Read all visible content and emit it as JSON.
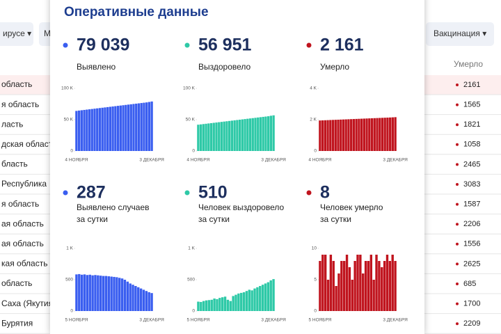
{
  "toolbar": [
    "ирусе ▾",
    "М",
    "Вакцинация ▾"
  ],
  "table": {
    "header": "Умерло",
    "rows": [
      [
        "область",
        "2161"
      ],
      [
        "я область",
        "1565"
      ],
      [
        "ласть",
        "1821"
      ],
      [
        "дская област",
        "1058"
      ],
      [
        "бласть",
        "2465"
      ],
      [
        "Республика",
        "3083"
      ],
      [
        "я область",
        "1587"
      ],
      [
        "ая область",
        "2206"
      ],
      [
        "ая область",
        "1556"
      ],
      [
        "кая область",
        "2625"
      ],
      [
        "область",
        "685"
      ],
      [
        "Саха (Якутия",
        "1700"
      ],
      [
        "Бурятия",
        "2209"
      ]
    ]
  },
  "popup": {
    "title": "Оперативные данные",
    "cards": [
      {
        "value": "79 039",
        "label": [
          "Выявлено"
        ],
        "chart_data": {
          "type": "bar",
          "color": "#3a5ef0",
          "categories": [
            "4 НОЯБРЯ",
            null,
            null,
            null,
            null,
            null,
            null,
            null,
            null,
            null,
            null,
            null,
            null,
            null,
            null,
            null,
            null,
            null,
            null,
            null,
            null,
            null,
            null,
            null,
            null,
            null,
            null,
            null,
            null,
            "3 ДЕКАБРЯ"
          ],
          "values": [
            64000,
            64600,
            65100,
            65600,
            66100,
            66600,
            67100,
            67600,
            68100,
            68600,
            69100,
            69600,
            70100,
            70600,
            71100,
            71600,
            72100,
            72600,
            73100,
            73600,
            74100,
            74600,
            75100,
            75600,
            76100,
            76600,
            77100,
            77600,
            78300,
            79039
          ],
          "ylim": [
            0,
            100000
          ],
          "yticks": [
            0,
            {
              "value": 50000,
              "label": "50 K"
            },
            {
              "value": 100000,
              "label": "100 K"
            }
          ]
        }
      },
      {
        "value": "56 951",
        "label": [
          "Выздоровело"
        ],
        "chart_data": {
          "type": "bar",
          "color": "#2ec9a7",
          "categories": [
            "4 НОЯБРЯ",
            null,
            null,
            null,
            null,
            null,
            null,
            null,
            null,
            null,
            null,
            null,
            null,
            null,
            null,
            null,
            null,
            null,
            null,
            null,
            null,
            null,
            null,
            null,
            null,
            null,
            null,
            null,
            null,
            "3 ДЕКАБРЯ"
          ],
          "values": [
            42000,
            42500,
            43000,
            43500,
            44000,
            44500,
            45000,
            45500,
            46000,
            46500,
            47000,
            47500,
            48000,
            48500,
            49000,
            49500,
            50000,
            50500,
            51000,
            51500,
            52000,
            52500,
            53000,
            53500,
            54000,
            54500,
            55000,
            55500,
            56300,
            56951
          ],
          "ylim": [
            0,
            100000
          ],
          "yticks": [
            0,
            {
              "value": 50000,
              "label": "50 K"
            },
            {
              "value": 100000,
              "label": "100 K"
            }
          ]
        }
      },
      {
        "value": "2 161",
        "label": [
          "Умерло"
        ],
        "chart_data": {
          "type": "bar",
          "color": "#c0141e",
          "categories": [
            "4 НОЯБРЯ",
            null,
            null,
            null,
            null,
            null,
            null,
            null,
            null,
            null,
            null,
            null,
            null,
            null,
            null,
            null,
            null,
            null,
            null,
            null,
            null,
            null,
            null,
            null,
            null,
            null,
            null,
            null,
            null,
            "3 ДЕКАБРЯ"
          ],
          "values": [
            1950,
            1958,
            1965,
            1972,
            1979,
            1986,
            1993,
            2000,
            2007,
            2014,
            2021,
            2028,
            2035,
            2042,
            2049,
            2056,
            2063,
            2070,
            2077,
            2084,
            2091,
            2098,
            2105,
            2112,
            2119,
            2126,
            2133,
            2140,
            2150,
            2161
          ],
          "ylim": [
            0,
            4000
          ],
          "yticks": [
            0,
            {
              "value": 2000,
              "label": "2 K"
            },
            {
              "value": 4000,
              "label": "4 K"
            }
          ]
        }
      },
      {
        "value": "287",
        "label": [
          "Выявлено случаев",
          "за сутки"
        ],
        "chart_data": {
          "type": "bar",
          "color": "#3a5ef0",
          "categories": [
            "5 НОЯБРЯ",
            null,
            null,
            null,
            null,
            null,
            null,
            null,
            null,
            null,
            null,
            null,
            null,
            null,
            null,
            null,
            null,
            null,
            null,
            null,
            null,
            null,
            null,
            null,
            null,
            null,
            null,
            null,
            "3 ДЕКАБРЯ"
          ],
          "values": [
            585,
            590,
            580,
            585,
            575,
            580,
            570,
            575,
            570,
            565,
            560,
            560,
            555,
            550,
            545,
            540,
            530,
            520,
            500,
            470,
            440,
            420,
            400,
            380,
            360,
            340,
            320,
            300,
            287
          ],
          "ylim": [
            0,
            1000
          ],
          "yticks": [
            0,
            500,
            {
              "value": 1000,
              "label": "1 K"
            }
          ]
        }
      },
      {
        "value": "510",
        "label": [
          "Человек выздоровело",
          "за сутки"
        ],
        "chart_data": {
          "type": "bar",
          "color": "#2ec9a7",
          "categories": [
            "5 НОЯБРЯ",
            null,
            null,
            null,
            null,
            null,
            null,
            null,
            null,
            null,
            null,
            null,
            null,
            null,
            null,
            null,
            null,
            null,
            null,
            null,
            null,
            null,
            null,
            null,
            null,
            null,
            null,
            null,
            "3 ДЕКАБРЯ"
          ],
          "values": [
            150,
            145,
            160,
            170,
            175,
            180,
            200,
            190,
            210,
            220,
            230,
            180,
            160,
            240,
            260,
            280,
            290,
            300,
            320,
            340,
            330,
            360,
            380,
            400,
            420,
            440,
            460,
            490,
            510
          ],
          "ylim": [
            0,
            1000
          ],
          "yticks": [
            0,
            500,
            {
              "value": 1000,
              "label": "1 K"
            }
          ]
        }
      },
      {
        "value": "8",
        "label": [
          "Человек умерло",
          "за сутки"
        ],
        "chart_data": {
          "type": "bar",
          "color": "#c0141e",
          "categories": [
            "5 НОЯБРЯ",
            null,
            null,
            null,
            null,
            null,
            null,
            null,
            null,
            null,
            null,
            null,
            null,
            null,
            null,
            null,
            null,
            null,
            null,
            null,
            null,
            null,
            null,
            null,
            null,
            null,
            null,
            null,
            "3 ДЕКАБРЯ"
          ],
          "values": [
            8,
            9,
            9,
            5,
            9,
            8,
            4,
            6,
            8,
            8,
            9,
            7,
            5,
            8,
            9,
            9,
            6,
            8,
            8,
            9,
            5,
            9,
            8,
            7,
            8,
            9,
            8,
            9,
            8
          ],
          "ylim": [
            0,
            10
          ],
          "yticks": [
            0,
            5,
            10
          ]
        }
      }
    ]
  }
}
